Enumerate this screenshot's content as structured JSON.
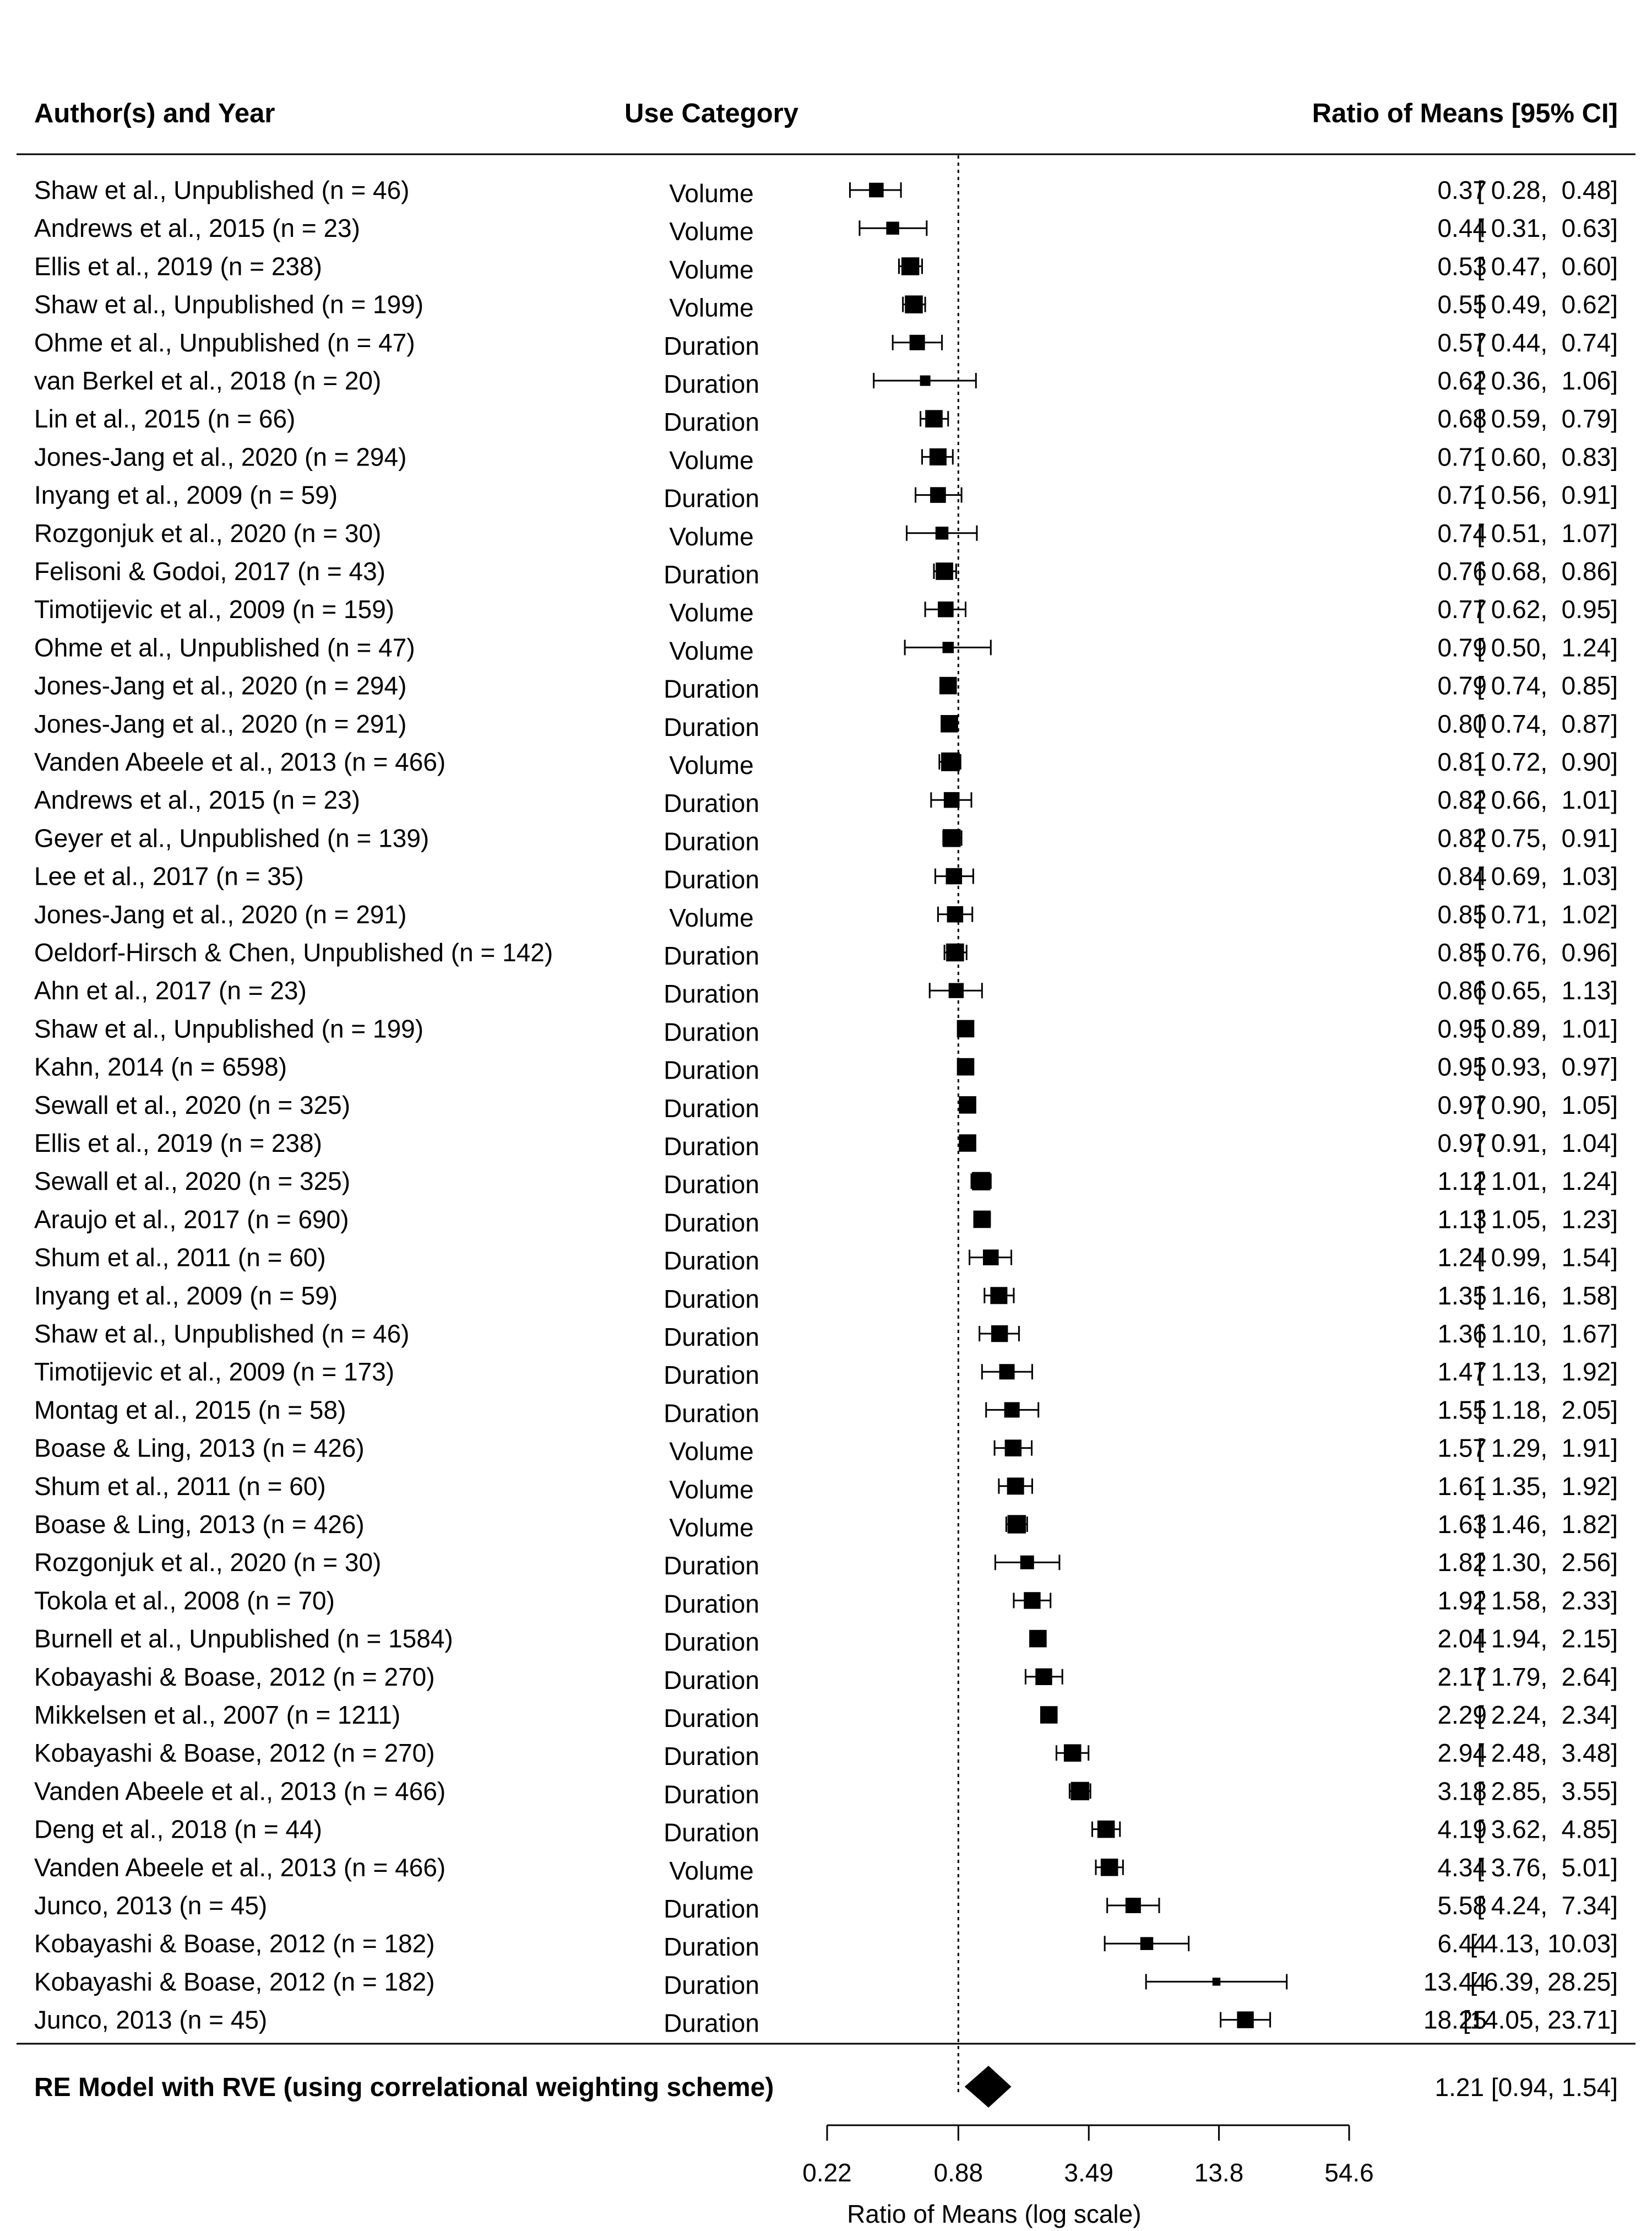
{
  "chart_data": {
    "type": "forest",
    "headers": {
      "study": "Author(s) and Year",
      "category": "Use Category",
      "estimate": "Ratio of Means [95% CI]"
    },
    "studies": [
      {
        "label": "Shaw et al., Unpublished (n = 46)",
        "category": "Volume",
        "est": 0.37,
        "lo": 0.28,
        "hi": 0.48,
        "est_text": "0.37",
        "ci_text": "[ 0.28,  0.48]",
        "weight": 0.55
      },
      {
        "label": "Andrews et al., 2015 (n = 23)",
        "category": "Volume",
        "est": 0.44,
        "lo": 0.31,
        "hi": 0.63,
        "est_text": "0.44",
        "ci_text": "[ 0.31,  0.63]",
        "weight": 0.45
      },
      {
        "label": "Ellis et al., 2019 (n = 238)",
        "category": "Volume",
        "est": 0.53,
        "lo": 0.47,
        "hi": 0.6,
        "est_text": "0.53",
        "ci_text": "[ 0.47,  0.60]",
        "weight": 0.75
      },
      {
        "label": "Shaw et al., Unpublished (n = 199)",
        "category": "Volume",
        "est": 0.55,
        "lo": 0.49,
        "hi": 0.62,
        "est_text": "0.55",
        "ci_text": "[ 0.49,  0.62]",
        "weight": 0.75
      },
      {
        "label": "Ohme et al., Unpublished (n = 47)",
        "category": "Duration",
        "est": 0.57,
        "lo": 0.44,
        "hi": 0.74,
        "est_text": "0.57",
        "ci_text": "[ 0.44,  0.74]",
        "weight": 0.6
      },
      {
        "label": "van Berkel et al., 2018 (n = 20)",
        "category": "Duration",
        "est": 0.62,
        "lo": 0.36,
        "hi": 1.06,
        "est_text": "0.62",
        "ci_text": "[ 0.36,  1.06]",
        "weight": 0.3
      },
      {
        "label": "Lin et al., 2015 (n = 66)",
        "category": "Duration",
        "est": 0.68,
        "lo": 0.59,
        "hi": 0.79,
        "est_text": "0.68",
        "ci_text": "[ 0.59,  0.79]",
        "weight": 0.72
      },
      {
        "label": "Jones-Jang et al., 2020 (n = 294)",
        "category": "Volume",
        "est": 0.71,
        "lo": 0.6,
        "hi": 0.83,
        "est_text": "0.71",
        "ci_text": "[ 0.60,  0.83]",
        "weight": 0.7
      },
      {
        "label": "Inyang et al., 2009 (n = 59)",
        "category": "Duration",
        "est": 0.71,
        "lo": 0.56,
        "hi": 0.91,
        "est_text": "0.71",
        "ci_text": "[ 0.56,  0.91]",
        "weight": 0.62
      },
      {
        "label": "Rozgonjuk et al., 2020 (n = 30)",
        "category": "Volume",
        "est": 0.74,
        "lo": 0.51,
        "hi": 1.07,
        "est_text": "0.74",
        "ci_text": "[ 0.51,  1.07]",
        "weight": 0.45
      },
      {
        "label": "Felisoni & Godoi, 2017 (n = 43)",
        "category": "Duration",
        "est": 0.76,
        "lo": 0.68,
        "hi": 0.86,
        "est_text": "0.76",
        "ci_text": "[ 0.68,  0.86]",
        "weight": 0.72
      },
      {
        "label": "Timotijevic et al., 2009 (n = 159)",
        "category": "Volume",
        "est": 0.77,
        "lo": 0.62,
        "hi": 0.95,
        "est_text": "0.77",
        "ci_text": "[ 0.62,  0.95]",
        "weight": 0.62
      },
      {
        "label": "Ohme et al., Unpublished (n = 47)",
        "category": "Volume",
        "est": 0.79,
        "lo": 0.5,
        "hi": 1.24,
        "est_text": "0.79",
        "ci_text": "[ 0.50,  1.24]",
        "weight": 0.35
      },
      {
        "label": "Jones-Jang et al., 2020 (n = 294)",
        "category": "Duration",
        "est": 0.79,
        "lo": 0.74,
        "hi": 0.85,
        "est_text": "0.79",
        "ci_text": "[ 0.74,  0.85]",
        "weight": 0.72
      },
      {
        "label": "Jones-Jang et al., 2020 (n = 291)",
        "category": "Duration",
        "est": 0.8,
        "lo": 0.74,
        "hi": 0.87,
        "est_text": "0.80",
        "ci_text": "[ 0.74,  0.87]",
        "weight": 0.72
      },
      {
        "label": "Vanden Abeele et al., 2013 (n = 466)",
        "category": "Volume",
        "est": 0.81,
        "lo": 0.72,
        "hi": 0.9,
        "est_text": "0.81",
        "ci_text": "[ 0.72,  0.90]",
        "weight": 0.8
      },
      {
        "label": "Andrews et al., 2015 (n = 23)",
        "category": "Duration",
        "est": 0.82,
        "lo": 0.66,
        "hi": 1.01,
        "est_text": "0.82",
        "ci_text": "[ 0.66,  1.01]",
        "weight": 0.62
      },
      {
        "label": "Geyer et al., Unpublished (n = 139)",
        "category": "Duration",
        "est": 0.82,
        "lo": 0.75,
        "hi": 0.91,
        "est_text": "0.82",
        "ci_text": "[ 0.75,  0.91]",
        "weight": 0.75
      },
      {
        "label": "Lee et al., 2017 (n = 35)",
        "category": "Duration",
        "est": 0.84,
        "lo": 0.69,
        "hi": 1.03,
        "est_text": "0.84",
        "ci_text": "[ 0.69,  1.03]",
        "weight": 0.65
      },
      {
        "label": "Jones-Jang et al., 2020 (n = 291)",
        "category": "Volume",
        "est": 0.85,
        "lo": 0.71,
        "hi": 1.02,
        "est_text": "0.85",
        "ci_text": "[ 0.71,  1.02]",
        "weight": 0.65
      },
      {
        "label": "Oeldorf-Hirsch & Chen, Unpublished (n = 142)",
        "category": "Duration",
        "est": 0.85,
        "lo": 0.76,
        "hi": 0.96,
        "est_text": "0.85",
        "ci_text": "[ 0.76,  0.96]",
        "weight": 0.75
      },
      {
        "label": "Ahn et al., 2017 (n = 23)",
        "category": "Duration",
        "est": 0.86,
        "lo": 0.65,
        "hi": 1.13,
        "est_text": "0.86",
        "ci_text": "[ 0.65,  1.13]",
        "weight": 0.58
      },
      {
        "label": "Shaw et al., Unpublished (n = 199)",
        "category": "Duration",
        "est": 0.95,
        "lo": 0.89,
        "hi": 1.01,
        "est_text": "0.95",
        "ci_text": "[ 0.89,  1.01]",
        "weight": 0.72
      },
      {
        "label": "Kahn, 2014 (n = 6598)",
        "category": "Duration",
        "est": 0.95,
        "lo": 0.93,
        "hi": 0.97,
        "est_text": "0.95",
        "ci_text": "[ 0.93,  0.97]",
        "weight": 0.72
      },
      {
        "label": "Sewall et al., 2020 (n = 325)",
        "category": "Duration",
        "est": 0.97,
        "lo": 0.9,
        "hi": 1.05,
        "est_text": "0.97",
        "ci_text": "[ 0.90,  1.05]",
        "weight": 0.72
      },
      {
        "label": "Ellis et al., 2019 (n = 238)",
        "category": "Duration",
        "est": 0.97,
        "lo": 0.91,
        "hi": 1.04,
        "est_text": "0.97",
        "ci_text": "[ 0.91,  1.04]",
        "weight": 0.72
      },
      {
        "label": "Sewall et al., 2020 (n = 325)",
        "category": "Duration",
        "est": 1.12,
        "lo": 1.01,
        "hi": 1.24,
        "est_text": "1.12",
        "ci_text": "[ 1.01,  1.24]",
        "weight": 0.78
      },
      {
        "label": "Araujo et al., 2017 (n = 690)",
        "category": "Duration",
        "est": 1.13,
        "lo": 1.05,
        "hi": 1.23,
        "est_text": "1.13",
        "ci_text": "[ 1.05,  1.23]",
        "weight": 0.72
      },
      {
        "label": "Shum et al., 2011 (n = 60)",
        "category": "Duration",
        "est": 1.24,
        "lo": 0.99,
        "hi": 1.54,
        "est_text": "1.24",
        "ci_text": "[ 0.99,  1.54]",
        "weight": 0.62
      },
      {
        "label": "Inyang et al., 2009 (n = 59)",
        "category": "Duration",
        "est": 1.35,
        "lo": 1.16,
        "hi": 1.58,
        "est_text": "1.35",
        "ci_text": "[ 1.16,  1.58]",
        "weight": 0.7
      },
      {
        "label": "Shaw et al., Unpublished (n = 46)",
        "category": "Duration",
        "est": 1.36,
        "lo": 1.1,
        "hi": 1.67,
        "est_text": "1.36",
        "ci_text": "[ 1.10,  1.67]",
        "weight": 0.68
      },
      {
        "label": "Timotijevic et al., 2009 (n = 173)",
        "category": "Duration",
        "est": 1.47,
        "lo": 1.13,
        "hi": 1.92,
        "est_text": "1.47",
        "ci_text": "[ 1.13,  1.92]",
        "weight": 0.6
      },
      {
        "label": "Montag et al., 2015 (n = 58)",
        "category": "Duration",
        "est": 1.55,
        "lo": 1.18,
        "hi": 2.05,
        "est_text": "1.55",
        "ci_text": "[ 1.18,  2.05]",
        "weight": 0.6
      },
      {
        "label": "Boase & Ling, 2013 (n = 426)",
        "category": "Volume",
        "est": 1.57,
        "lo": 1.29,
        "hi": 1.91,
        "est_text": "1.57",
        "ci_text": "[ 1.29,  1.91]",
        "weight": 0.68
      },
      {
        "label": "Shum et al., 2011 (n = 60)",
        "category": "Volume",
        "est": 1.61,
        "lo": 1.35,
        "hi": 1.92,
        "est_text": "1.61",
        "ci_text": "[ 1.35,  1.92]",
        "weight": 0.7
      },
      {
        "label": "Boase & Ling, 2013 (n = 426)",
        "category": "Volume",
        "est": 1.63,
        "lo": 1.46,
        "hi": 1.82,
        "est_text": "1.63",
        "ci_text": "[ 1.46,  1.82]",
        "weight": 0.78
      },
      {
        "label": "Rozgonjuk et al., 2020 (n = 30)",
        "category": "Duration",
        "est": 1.82,
        "lo": 1.3,
        "hi": 2.56,
        "est_text": "1.82",
        "ci_text": "[ 1.30,  2.56]",
        "weight": 0.5
      },
      {
        "label": "Tokola et al., 2008 (n = 70)",
        "category": "Duration",
        "est": 1.92,
        "lo": 1.58,
        "hi": 2.33,
        "est_text": "1.92",
        "ci_text": "[ 1.58,  2.33]",
        "weight": 0.68
      },
      {
        "label": "Burnell et al., Unpublished (n = 1584)",
        "category": "Duration",
        "est": 2.04,
        "lo": 1.94,
        "hi": 2.15,
        "est_text": "2.04",
        "ci_text": "[ 1.94,  2.15]",
        "weight": 0.72
      },
      {
        "label": "Kobayashi & Boase, 2012 (n = 270)",
        "category": "Duration",
        "est": 2.17,
        "lo": 1.79,
        "hi": 2.64,
        "est_text": "2.17",
        "ci_text": "[ 1.79,  2.64]",
        "weight": 0.68
      },
      {
        "label": "Mikkelsen et al., 2007 (n = 1211)",
        "category": "Duration",
        "est": 2.29,
        "lo": 2.24,
        "hi": 2.34,
        "est_text": "2.29",
        "ci_text": "[ 2.24,  2.34]",
        "weight": 0.72
      },
      {
        "label": "Kobayashi & Boase, 2012 (n = 270)",
        "category": "Duration",
        "est": 2.94,
        "lo": 2.48,
        "hi": 3.48,
        "est_text": "2.94",
        "ci_text": "[ 2.48,  3.48]",
        "weight": 0.72
      },
      {
        "label": "Vanden Abeele et al., 2013 (n = 466)",
        "category": "Duration",
        "est": 3.18,
        "lo": 2.85,
        "hi": 3.55,
        "est_text": "3.18",
        "ci_text": "[ 2.85,  3.55]",
        "weight": 0.78
      },
      {
        "label": "Deng et al., 2018 (n = 44)",
        "category": "Duration",
        "est": 4.19,
        "lo": 3.62,
        "hi": 4.85,
        "est_text": "4.19",
        "ci_text": "[ 3.62,  4.85]",
        "weight": 0.72
      },
      {
        "label": "Vanden Abeele et al., 2013 (n = 466)",
        "category": "Volume",
        "est": 4.34,
        "lo": 3.76,
        "hi": 5.01,
        "est_text": "4.34",
        "ci_text": "[ 3.76,  5.01]",
        "weight": 0.72
      },
      {
        "label": "Junco, 2013 (n = 45)",
        "category": "Duration",
        "est": 5.58,
        "lo": 4.24,
        "hi": 7.34,
        "est_text": "5.58",
        "ci_text": "[ 4.24,  7.34]",
        "weight": 0.6
      },
      {
        "label": "Kobayashi & Boase, 2012 (n = 182)",
        "category": "Duration",
        "est": 6.44,
        "lo": 4.13,
        "hi": 10.03,
        "est_text": "6.44",
        "ci_text": "[ 4.13, 10.03]",
        "weight": 0.45
      },
      {
        "label": "Kobayashi & Boase, 2012 (n = 182)",
        "category": "Duration",
        "est": 13.44,
        "lo": 6.39,
        "hi": 28.25,
        "est_text": "13.44",
        "ci_text": "[ 6.39, 28.25]",
        "weight": 0.15
      },
      {
        "label": "Junco, 2013 (n = 45)",
        "category": "Duration",
        "est": 18.25,
        "lo": 14.05,
        "hi": 23.71,
        "est_text": "18.25",
        "ci_text": "[14.05, 23.71]",
        "weight": 0.68
      }
    ],
    "summary": {
      "label": "RE Model with RVE (using correlational weighting scheme)",
      "est": 1.21,
      "lo": 0.94,
      "hi": 1.54,
      "text": "1.21 [0.94, 1.54]"
    },
    "x_axis": {
      "label": "Ratio of Means (log scale)",
      "scale": "log",
      "ticks": [
        0.22,
        0.88,
        3.49,
        13.8,
        54.6
      ],
      "tick_labels": [
        "0.22",
        "0.88",
        "3.49",
        "13.8",
        "54.6"
      ],
      "reference_line": 0.88
    }
  }
}
